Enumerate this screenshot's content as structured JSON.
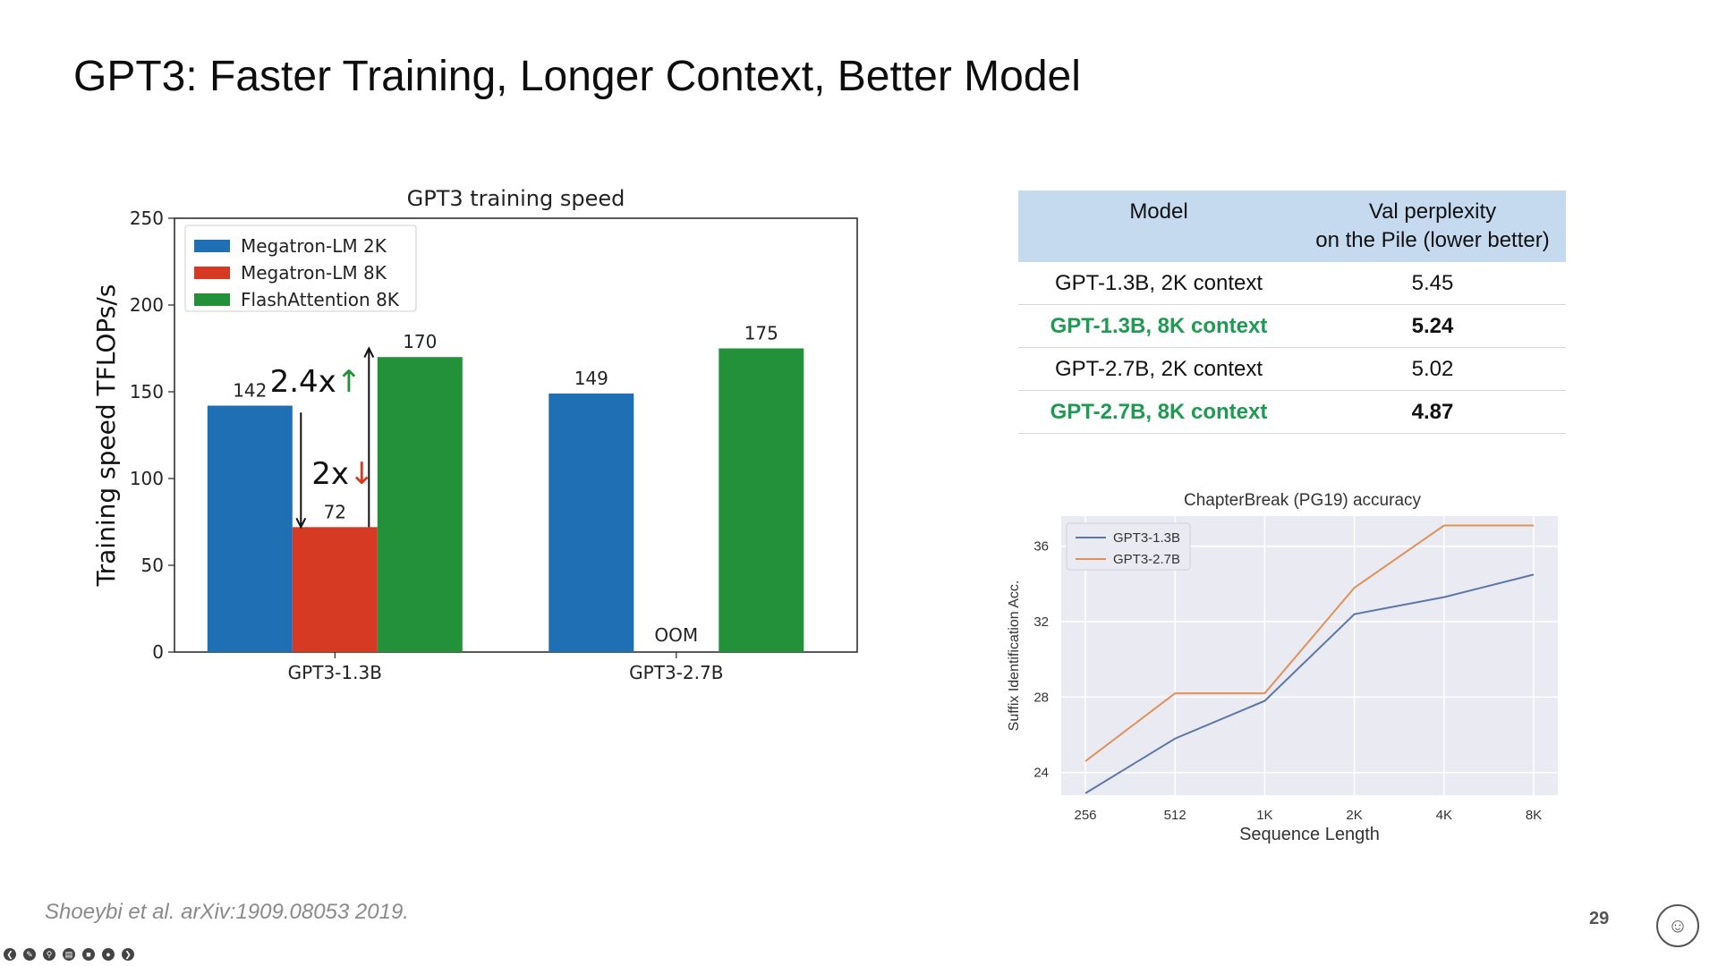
{
  "slide": {
    "title": "GPT3: Faster Training, Longer Context, Better Model",
    "citation": "Shoeybi et al. arXiv:1909.08053 2019.",
    "page_number": "29"
  },
  "chart_data": [
    {
      "type": "bar",
      "title": "GPT3 training speed",
      "xlabel": "",
      "ylabel": "Training speed TFLOPs/s",
      "ylim": [
        0,
        250
      ],
      "yticks": [
        "0",
        "50",
        "100",
        "150",
        "200",
        "250"
      ],
      "categories": [
        "GPT3-1.3B",
        "GPT3-2.7B"
      ],
      "series": [
        {
          "name": "Megatron-LM 2K",
          "color": "#1f6fb5",
          "values": [
            142,
            149
          ],
          "labels": [
            "142",
            "149"
          ]
        },
        {
          "name": "Megatron-LM 8K",
          "color": "#d63a22",
          "values": [
            72,
            null
          ],
          "labels": [
            "72",
            "OOM"
          ]
        },
        {
          "name": "FlashAttention 8K",
          "color": "#23903a",
          "values": [
            170,
            175
          ],
          "labels": [
            "170",
            "175"
          ]
        }
      ],
      "legend": "top-left",
      "annotations": [
        {
          "text": "2.4x",
          "arrow": "↑",
          "arrow_color": "#23903a"
        },
        {
          "text": "2x",
          "arrow": "↓",
          "arrow_color": "#d63a22"
        }
      ]
    },
    {
      "type": "line",
      "title": "ChapterBreak (PG19) accuracy",
      "xlabel": "Sequence Length",
      "ylabel": "Suffix Identification Acc.",
      "x": [
        "256",
        "512",
        "1K",
        "2K",
        "4K",
        "8K"
      ],
      "yticks": [
        "24",
        "28",
        "32",
        "36"
      ],
      "ylim": [
        22.8,
        37.6
      ],
      "grid": true,
      "legend": "top-left",
      "series": [
        {
          "name": "GPT3-1.3B",
          "color": "#5a77a8",
          "values": [
            22.9,
            25.8,
            27.8,
            32.4,
            33.3,
            34.5
          ]
        },
        {
          "name": "GPT3-2.7B",
          "color": "#e0915a",
          "values": [
            24.6,
            28.2,
            28.2,
            33.8,
            37.1,
            37.1
          ]
        }
      ]
    }
  ],
  "table": {
    "headers": [
      "Model",
      "Val perplexity",
      "on the Pile (lower better)"
    ],
    "rows": [
      {
        "model": "GPT-1.3B, 2K context",
        "ppl": "5.45"
      },
      {
        "model": "GPT-1.3B, 8K context",
        "ppl": "5.24"
      },
      {
        "model": "GPT-2.7B, 2K context",
        "ppl": "5.02"
      },
      {
        "model": "GPT-2.7B, 8K context",
        "ppl": "4.87"
      }
    ]
  },
  "toolbar": {
    "items": [
      {
        "icon": "back-arrow-icon",
        "glyph": "❮"
      },
      {
        "icon": "pen-icon",
        "glyph": "✎"
      },
      {
        "icon": "zoom-icon",
        "glyph": "⚲"
      },
      {
        "icon": "subtitles-icon",
        "glyph": "▤"
      },
      {
        "icon": "camera-icon",
        "glyph": "■"
      },
      {
        "icon": "record-icon",
        "glyph": "●"
      },
      {
        "icon": "forward-arrow-icon",
        "glyph": "❯"
      }
    ]
  }
}
